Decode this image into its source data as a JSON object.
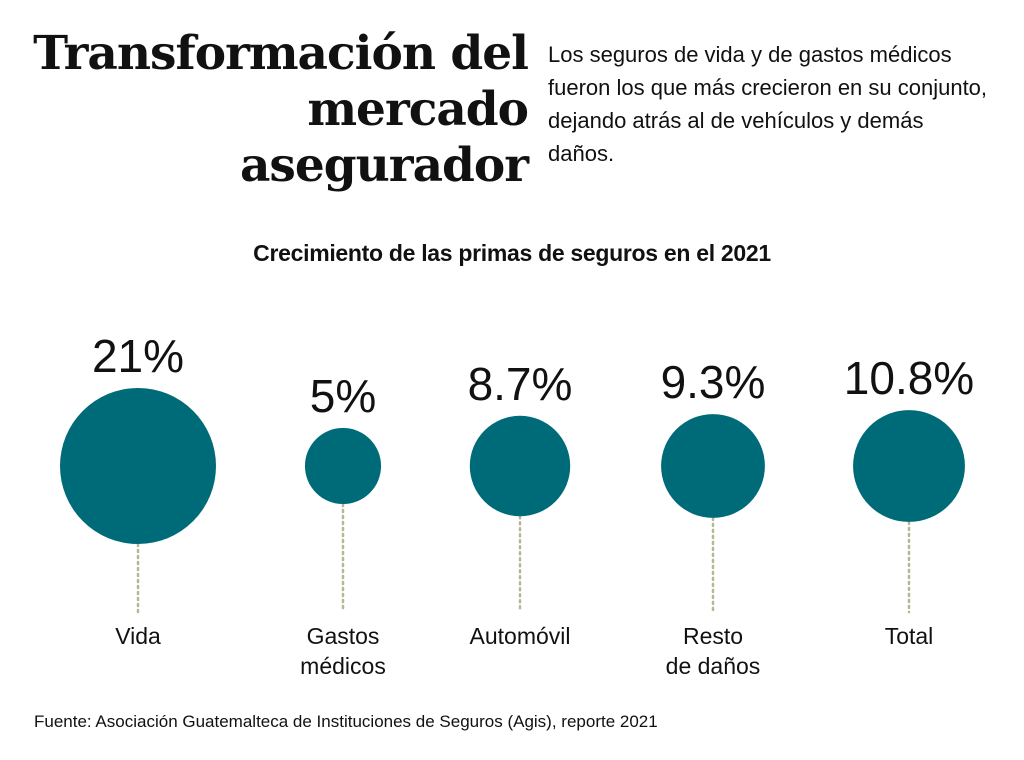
{
  "header": {
    "title": "Transformación del\nmercado asegurador",
    "intro": "Los seguros de vida y de gastos médicos fueron los que más crecieron en su conjunto, dejando atrás al de vehículos y demás daños."
  },
  "source": "Fuente: Asociación Guatemalteca de Instituciones de Seguros (Agis), reporte 2021",
  "colors": {
    "bubble": "#006B78",
    "leader": "#B5B892",
    "text": "#111111"
  },
  "chart_data": {
    "type": "bubble",
    "title": "Crecimiento de las primas de seguros en el 2021",
    "categories": [
      "Vida",
      "Gastos médicos",
      "Automóvil",
      "Resto de daños",
      "Total"
    ],
    "category_lines": [
      [
        "Vida"
      ],
      [
        "Gastos",
        "médicos"
      ],
      [
        "Automóvil"
      ],
      [
        "Resto",
        "de daños"
      ],
      [
        "Total"
      ]
    ],
    "values": [
      21,
      5,
      8.7,
      9.3,
      10.8
    ],
    "value_labels": [
      "21%",
      "5%",
      "8.7%",
      "9.3%",
      "10.8%"
    ],
    "unit": "%"
  }
}
